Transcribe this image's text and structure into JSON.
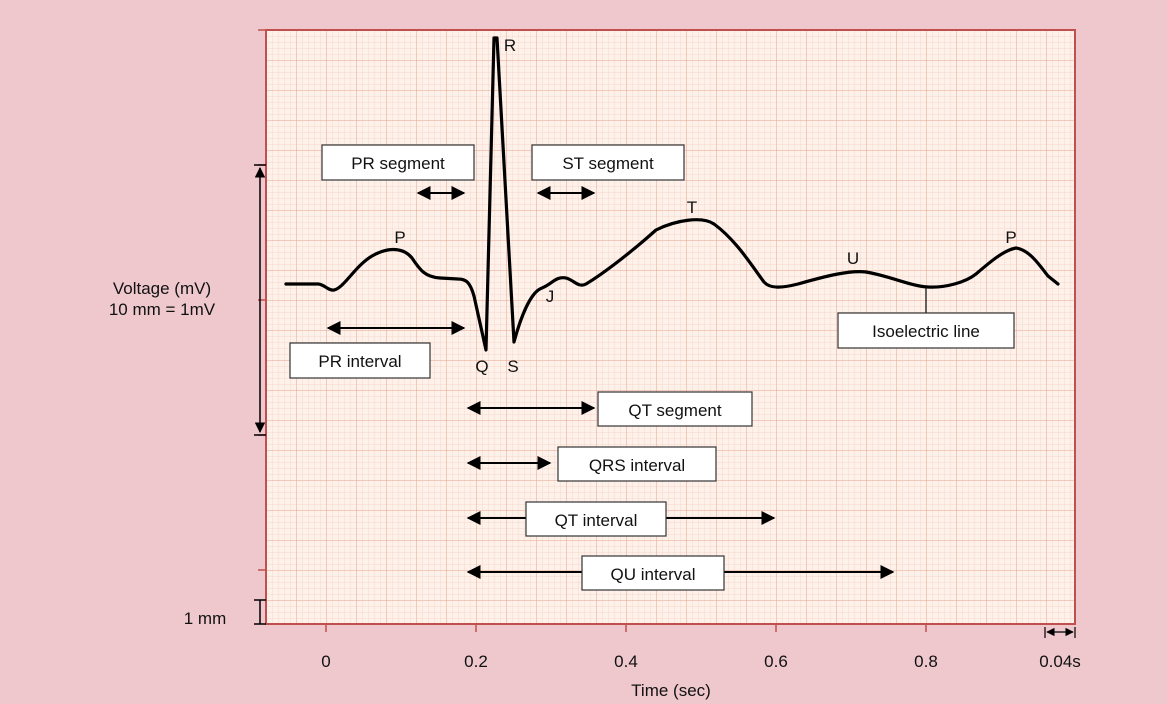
{
  "y_axis": {
    "label_line1": "Voltage (mV)",
    "label_line2": "10 mm = 1mV",
    "scale_label": "1 mm"
  },
  "x_axis": {
    "label": "Time (sec)",
    "ticks": [
      "0",
      "0.2",
      "0.4",
      "0.6",
      "0.8"
    ],
    "small_square_label": "0.04s"
  },
  "waves": {
    "p1": "P",
    "q": "Q",
    "r": "R",
    "s": "S",
    "j": "J",
    "t": "T",
    "u": "U",
    "p2": "P"
  },
  "annotations": {
    "pr_segment": "PR segment",
    "st_segment": "ST segment",
    "pr_interval": "PR interval",
    "isoelectric_line": "Isoelectric line",
    "qt_segment": "QT segment",
    "qrs_interval": "QRS interval",
    "qt_interval": "QT interval",
    "qu_interval": "QU interval"
  },
  "colors": {
    "background": "#eec8cd",
    "grid_paper": "#fdf1ea",
    "grid_minor": "#f2c2b0",
    "grid_major": "#e8a48c",
    "frame": "#c0504d",
    "trace": "#000000"
  }
}
